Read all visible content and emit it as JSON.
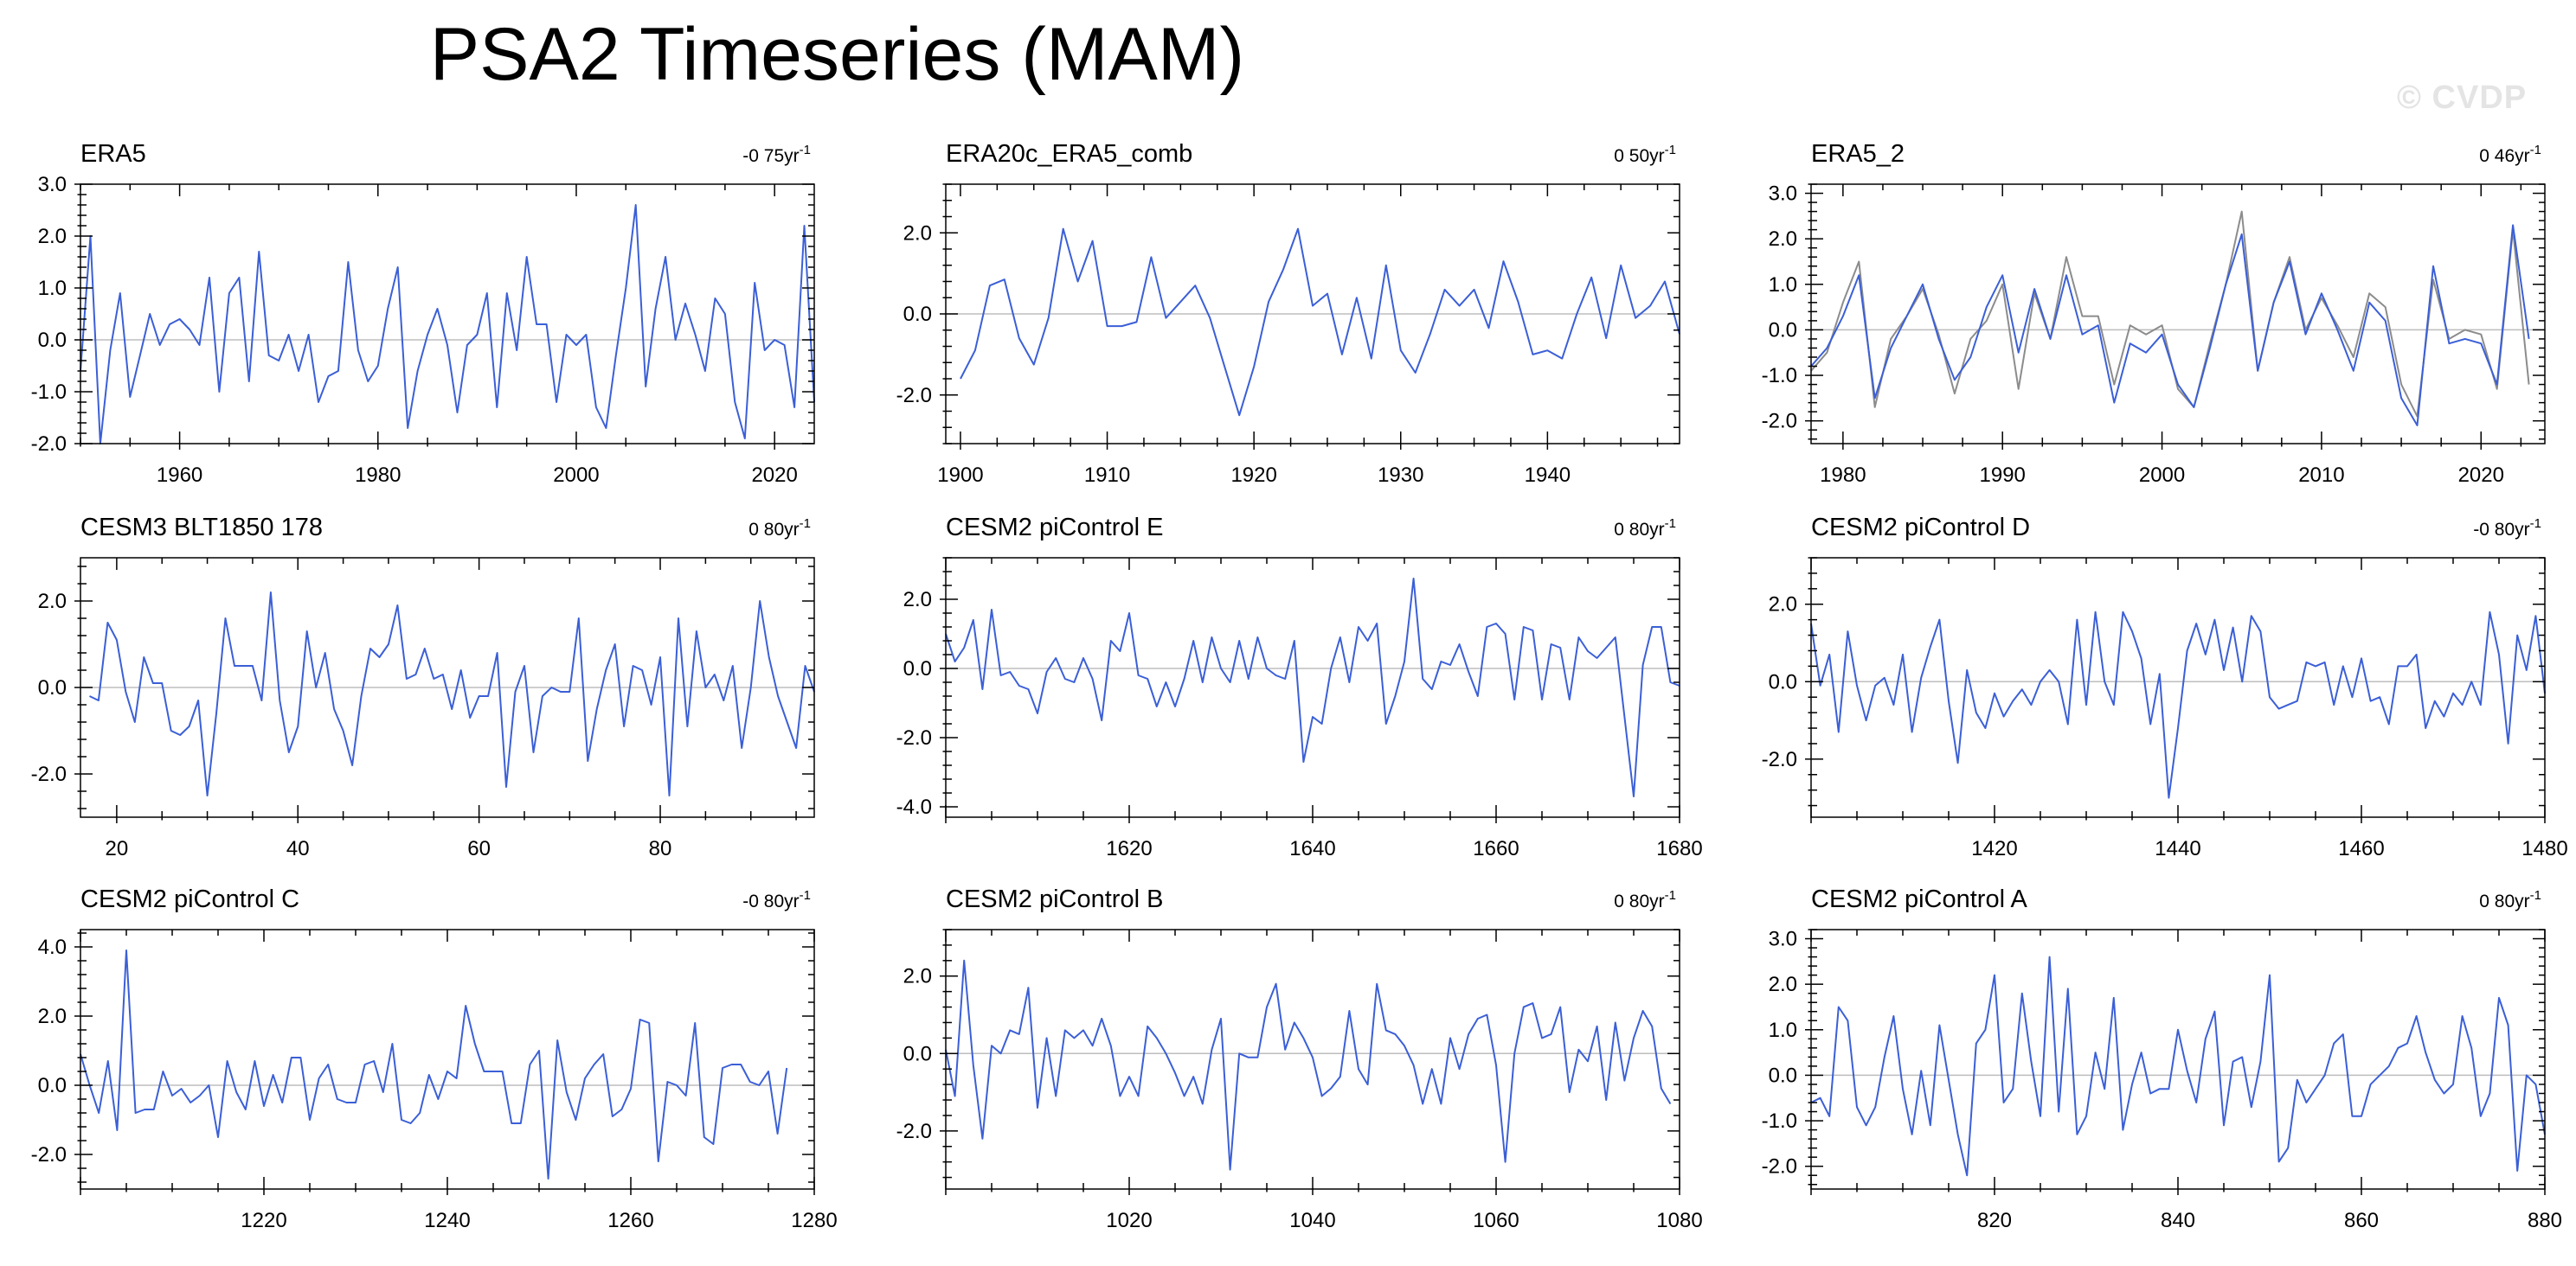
{
  "title": "PSA2 Timeseries (MAM)",
  "watermark": "© CVDP",
  "colors": {
    "series": "#3b5fd6",
    "reference": "#8c8c8c",
    "zero_line": "#bdbdbd",
    "axis": "#000000"
  },
  "chart_data": [
    {
      "type": "line",
      "title": "ERA5",
      "trend": "-0 75yr",
      "trend_exp": "-1",
      "xlim": [
        1950,
        2024
      ],
      "ylim": [
        -2.0,
        3.0
      ],
      "xticks": [
        1960,
        1980,
        2000,
        2020
      ],
      "xtick_labels": [
        "1960",
        "1980",
        "2000",
        "2020"
      ],
      "yticks": [
        -2.0,
        -1.0,
        0.0,
        1.0,
        2.0,
        3.0
      ],
      "ytick_labels": [
        "-2.0",
        "-1.0",
        "0.0",
        "1.0",
        "2.0",
        "3.0"
      ],
      "series": [
        {
          "name": "ERA5",
          "x_start": 1950,
          "values": [
            -0.6,
            2.0,
            -2.0,
            -0.2,
            0.9,
            -1.1,
            -0.3,
            0.5,
            -0.1,
            0.3,
            0.4,
            0.2,
            -0.1,
            1.2,
            -1.0,
            0.9,
            1.2,
            -0.8,
            1.7,
            -0.3,
            -0.4,
            0.1,
            -0.6,
            0.1,
            -1.2,
            -0.7,
            -0.6,
            1.5,
            -0.2,
            -0.8,
            -0.5,
            0.6,
            1.4,
            -1.7,
            -0.6,
            0.1,
            0.6,
            -0.1,
            -1.4,
            -0.1,
            0.1,
            0.9,
            -1.3,
            0.9,
            -0.2,
            1.6,
            0.3,
            0.3,
            -1.2,
            0.1,
            -0.1,
            0.1,
            -1.3,
            -1.7,
            -0.3,
            1.0,
            2.6,
            -0.9,
            0.6,
            1.6,
            0.0,
            0.7,
            0.1,
            -0.6,
            0.8,
            0.5,
            -1.2,
            -1.9,
            1.1,
            -0.2,
            0.0,
            -0.1,
            -1.3,
            2.2,
            -1.2
          ]
        }
      ]
    },
    {
      "type": "line",
      "title": "ERA20c_ERA5_comb",
      "trend": "0 50yr",
      "trend_exp": "-1",
      "xlim": [
        1899,
        1949
      ],
      "ylim": [
        -3.2,
        3.2
      ],
      "xticks": [
        1900,
        1910,
        1920,
        1930,
        1940
      ],
      "xtick_labels": [
        "1900",
        "1910",
        "1920",
        "1930",
        "1940"
      ],
      "yticks": [
        -2.0,
        0.0,
        2.0
      ],
      "ytick_labels": [
        "-2.0",
        "0.0",
        "2.0"
      ],
      "series": [
        {
          "name": "ERA20c_ERA5_comb",
          "x_start": 1900,
          "values": [
            -1.6,
            -0.9,
            0.7,
            0.85,
            -0.6,
            -1.25,
            -0.1,
            2.1,
            0.8,
            1.8,
            -0.3,
            -0.3,
            -0.2,
            1.4,
            -0.1,
            0.3,
            0.7,
            -0.1,
            -1.3,
            -2.5,
            -1.3,
            0.3,
            1.1,
            2.1,
            0.2,
            0.5,
            -1.0,
            0.4,
            -1.1,
            1.2,
            -0.9,
            -1.45,
            -0.5,
            0.6,
            0.2,
            0.6,
            -0.35,
            1.3,
            0.3,
            -1.0,
            -0.9,
            -1.1,
            0.0,
            0.9,
            -0.6,
            1.2,
            -0.1,
            0.2,
            0.8,
            -0.5
          ]
        }
      ]
    },
    {
      "type": "line",
      "title": "ERA5_2",
      "trend": "0 46yr",
      "trend_exp": "-1",
      "xlim": [
        1978,
        2024
      ],
      "ylim": [
        -2.5,
        3.2
      ],
      "xticks": [
        1980,
        1990,
        2000,
        2010,
        2020
      ],
      "xtick_labels": [
        "1980",
        "1990",
        "2000",
        "2010",
        "2020"
      ],
      "yticks": [
        -2.0,
        -1.0,
        0.0,
        1.0,
        2.0,
        3.0
      ],
      "ytick_labels": [
        "-2.0",
        "-1.0",
        "0.0",
        "1.0",
        "2.0",
        "3.0"
      ],
      "series": [
        {
          "name": "ERA5_2",
          "x_start": 1978,
          "values": [
            -0.8,
            -0.4,
            0.3,
            1.2,
            -1.5,
            -0.4,
            0.3,
            1.0,
            -0.2,
            -1.1,
            -0.6,
            0.5,
            1.2,
            -0.5,
            0.9,
            -0.2,
            1.2,
            -0.1,
            0.1,
            -1.6,
            -0.3,
            -0.5,
            -0.1,
            -1.2,
            -1.7,
            -0.4,
            1.0,
            2.1,
            -0.9,
            0.6,
            1.5,
            -0.1,
            0.8,
            0.0,
            -0.9,
            0.6,
            0.2,
            -1.5,
            -2.1,
            1.4,
            -0.3,
            -0.2,
            -0.3,
            -1.2,
            2.3,
            -0.2
          ]
        },
        {
          "name": "ERA5",
          "x_start": 1978,
          "values": [
            -0.9,
            -0.5,
            0.6,
            1.5,
            -1.7,
            -0.2,
            0.3,
            0.9,
            -0.1,
            -1.4,
            -0.2,
            0.2,
            1.0,
            -1.3,
            0.8,
            -0.2,
            1.6,
            0.3,
            0.3,
            -1.2,
            0.1,
            -0.1,
            0.1,
            -1.3,
            -1.7,
            -0.3,
            1.0,
            2.6,
            -0.9,
            0.6,
            1.6,
            0.0,
            0.7,
            0.1,
            -0.6,
            0.8,
            0.5,
            -1.2,
            -1.9,
            1.1,
            -0.2,
            0.0,
            -0.1,
            -1.3,
            2.2,
            -1.2
          ]
        }
      ]
    },
    {
      "type": "line",
      "title": "CESM3 BLT1850 178",
      "trend": "0 80yr",
      "trend_exp": "-1",
      "xlim": [
        16,
        97
      ],
      "ylim": [
        -3.0,
        3.0
      ],
      "xticks": [
        20,
        40,
        60,
        80
      ],
      "xtick_labels": [
        "20",
        "40",
        "60",
        "80"
      ],
      "yticks": [
        -2.0,
        0.0,
        2.0
      ],
      "ytick_labels": [
        "-2.0",
        "0.0",
        "2.0"
      ],
      "series": [
        {
          "name": "CESM3 BLT1850 178",
          "x_start": 17,
          "values": [
            -0.2,
            -0.3,
            1.5,
            1.1,
            -0.1,
            -0.8,
            0.7,
            0.1,
            0.1,
            -1.0,
            -1.1,
            -0.9,
            -0.3,
            -2.5,
            -0.6,
            1.6,
            0.5,
            0.5,
            0.5,
            -0.3,
            2.2,
            -0.3,
            -1.5,
            -0.9,
            1.3,
            0.0,
            0.8,
            -0.5,
            -1.0,
            -1.8,
            -0.2,
            0.9,
            0.7,
            1.0,
            1.9,
            0.2,
            0.3,
            0.9,
            0.2,
            0.3,
            -0.5,
            0.4,
            -0.7,
            -0.2,
            -0.2,
            0.8,
            -2.3,
            -0.1,
            0.5,
            -1.5,
            -0.2,
            0.0,
            -0.1,
            -0.1,
            1.6,
            -1.7,
            -0.5,
            0.4,
            1.0,
            -0.9,
            0.5,
            0.4,
            -0.4,
            0.7,
            -2.5,
            1.6,
            -0.9,
            1.3,
            0.0,
            0.3,
            -0.3,
            0.5,
            -1.4,
            0.0,
            2.0,
            0.7,
            -0.2,
            -0.8,
            -1.4,
            0.5,
            -0.1
          ]
        }
      ]
    },
    {
      "type": "line",
      "title": "CESM2 piControl E",
      "trend": "0 80yr",
      "trend_exp": "-1",
      "xlim": [
        1600,
        1680
      ],
      "ylim": [
        -4.3,
        3.2
      ],
      "xticks": [
        1620,
        1640,
        1660,
        1680
      ],
      "xtick_labels": [
        "1620",
        "1640",
        "1660",
        "1680"
      ],
      "yticks": [
        -4.0,
        -2.0,
        0.0,
        2.0
      ],
      "ytick_labels": [
        "-4.0",
        "-2.0",
        "0.0",
        "2.0"
      ],
      "series": [
        {
          "name": "CESM2 piControl E",
          "x_start": 1600,
          "values": [
            1.0,
            0.2,
            0.6,
            1.4,
            -0.6,
            1.7,
            -0.2,
            -0.1,
            -0.5,
            -0.6,
            -1.3,
            -0.1,
            0.3,
            -0.3,
            -0.4,
            0.3,
            -0.3,
            -1.5,
            0.8,
            0.5,
            1.6,
            -0.2,
            -0.3,
            -1.1,
            -0.4,
            -1.1,
            -0.3,
            0.8,
            -0.4,
            0.9,
            0.0,
            -0.4,
            0.8,
            -0.3,
            0.9,
            0.0,
            -0.2,
            -0.3,
            0.8,
            -2.7,
            -1.4,
            -1.6,
            0.0,
            0.9,
            -0.4,
            1.2,
            0.8,
            1.3,
            -1.6,
            -0.8,
            0.2,
            2.6,
            -0.3,
            -0.6,
            0.2,
            0.1,
            0.7,
            -0.1,
            -0.8,
            1.2,
            1.3,
            1.0,
            -0.9,
            1.2,
            1.1,
            -0.9,
            0.7,
            0.6,
            -0.9,
            0.9,
            0.5,
            0.3,
            0.6,
            0.9,
            -1.4,
            -3.7,
            0.1,
            1.2,
            1.2,
            -0.4,
            -0.5
          ]
        }
      ]
    },
    {
      "type": "line",
      "title": "CESM2 piControl D",
      "trend": "-0 80yr",
      "trend_exp": "-1",
      "xlim": [
        1400,
        1480
      ],
      "ylim": [
        -3.5,
        3.2
      ],
      "xticks": [
        1420,
        1440,
        1460,
        1480
      ],
      "xtick_labels": [
        "1420",
        "1440",
        "1460",
        "1480"
      ],
      "yticks": [
        -2.0,
        0.0,
        2.0
      ],
      "ytick_labels": [
        "-2.0",
        "0.0",
        "2.0"
      ],
      "series": [
        {
          "name": "CESM2 piControl D",
          "x_start": 1400,
          "values": [
            1.5,
            -0.1,
            0.7,
            -1.3,
            1.3,
            -0.1,
            -1.0,
            -0.1,
            0.1,
            -0.6,
            0.7,
            -1.3,
            0.1,
            0.9,
            1.6,
            -0.5,
            -2.1,
            0.3,
            -0.8,
            -1.2,
            -0.3,
            -0.9,
            -0.5,
            -0.2,
            -0.6,
            0.0,
            0.3,
            0.0,
            -1.1,
            1.6,
            -0.6,
            1.8,
            0.0,
            -0.6,
            1.8,
            1.3,
            0.6,
            -1.1,
            0.2,
            -3.0,
            -1.2,
            0.8,
            1.5,
            0.7,
            1.6,
            0.3,
            1.4,
            0.0,
            1.7,
            1.3,
            -0.4,
            -0.7,
            -0.6,
            -0.5,
            0.5,
            0.4,
            0.5,
            -0.6,
            0.4,
            -0.4,
            0.6,
            -0.5,
            -0.4,
            -1.1,
            0.4,
            0.4,
            0.7,
            -1.2,
            -0.5,
            -0.9,
            -0.3,
            -0.6,
            0.0,
            -0.6,
            1.8,
            0.7,
            -1.6,
            1.2,
            0.3,
            1.7,
            -0.3
          ]
        }
      ]
    },
    {
      "type": "line",
      "title": "CESM2 piControl C",
      "trend": "-0 80yr",
      "trend_exp": "-1",
      "xlim": [
        1200,
        1280
      ],
      "ylim": [
        -3.0,
        4.5
      ],
      "xticks": [
        1220,
        1240,
        1260,
        1280
      ],
      "xtick_labels": [
        "1220",
        "1240",
        "1260",
        "1280"
      ],
      "yticks": [
        -2.0,
        0.0,
        2.0,
        4.0
      ],
      "ytick_labels": [
        "-2.0",
        "0.0",
        "2.0",
        "4.0"
      ],
      "series": [
        {
          "name": "CESM2 piControl C",
          "x_start": 1200,
          "values": [
            0.9,
            0.0,
            -0.8,
            0.7,
            -1.3,
            3.9,
            -0.8,
            -0.7,
            -0.7,
            0.4,
            -0.3,
            -0.1,
            -0.5,
            -0.3,
            0.0,
            -1.5,
            0.7,
            -0.2,
            -0.7,
            0.7,
            -0.6,
            0.3,
            -0.5,
            0.8,
            0.8,
            -1.0,
            0.2,
            0.6,
            -0.4,
            -0.5,
            -0.5,
            0.6,
            0.7,
            -0.2,
            1.2,
            -1.0,
            -1.1,
            -0.8,
            0.3,
            -0.4,
            0.4,
            0.2,
            2.3,
            1.2,
            0.4,
            0.4,
            0.4,
            -1.1,
            -1.1,
            0.6,
            1.0,
            -2.7,
            1.3,
            -0.2,
            -1.0,
            0.2,
            0.6,
            0.9,
            -0.9,
            -0.7,
            -0.1,
            1.9,
            1.8,
            -2.2,
            0.1,
            0.0,
            -0.3,
            1.8,
            -1.5,
            -1.7,
            0.5,
            0.6,
            0.6,
            0.1,
            0.0,
            0.4,
            -1.4,
            0.5
          ]
        }
      ]
    },
    {
      "type": "line",
      "title": "CESM2 piControl B",
      "trend": "0 80yr",
      "trend_exp": "-1",
      "xlim": [
        1000,
        1080
      ],
      "ylim": [
        -3.5,
        3.2
      ],
      "xticks": [
        1020,
        1040,
        1060,
        1080
      ],
      "xtick_labels": [
        "1020",
        "1040",
        "1060",
        "1080"
      ],
      "yticks": [
        -2.0,
        0.0,
        2.0
      ],
      "ytick_labels": [
        "-2.0",
        "0.0",
        "2.0"
      ],
      "series": [
        {
          "name": "CESM2 piControl B",
          "x_start": 1000,
          "values": [
            0.1,
            -1.1,
            2.4,
            -0.3,
            -2.2,
            0.2,
            0.0,
            0.6,
            0.5,
            1.7,
            -1.4,
            0.4,
            -1.1,
            0.6,
            0.4,
            0.6,
            0.2,
            0.9,
            0.2,
            -1.1,
            -0.6,
            -1.1,
            0.7,
            0.4,
            0.0,
            -0.5,
            -1.1,
            -0.6,
            -1.3,
            0.1,
            0.9,
            -3.0,
            0.0,
            -0.1,
            -0.1,
            1.2,
            1.8,
            0.1,
            0.8,
            0.4,
            -0.1,
            -1.1,
            -0.9,
            -0.6,
            1.1,
            -0.4,
            -0.8,
            1.8,
            0.6,
            0.5,
            0.2,
            -0.3,
            -1.3,
            -0.4,
            -1.3,
            0.4,
            -0.4,
            0.5,
            0.9,
            1.0,
            -0.3,
            -2.8,
            0.0,
            1.2,
            1.3,
            0.4,
            0.5,
            1.2,
            -1.0,
            0.1,
            -0.2,
            0.7,
            -1.2,
            0.8,
            -0.7,
            0.4,
            1.1,
            0.7,
            -0.9,
            -1.3
          ]
        }
      ]
    },
    {
      "type": "line",
      "title": "CESM2 piControl A",
      "trend": "0 80yr",
      "trend_exp": "-1",
      "xlim": [
        800,
        880
      ],
      "ylim": [
        -2.5,
        3.2
      ],
      "xticks": [
        820,
        840,
        860,
        880
      ],
      "xtick_labels": [
        "820",
        "840",
        "860",
        "880"
      ],
      "yticks": [
        -2.0,
        -1.0,
        0.0,
        1.0,
        2.0,
        3.0
      ],
      "ytick_labels": [
        "-2.0",
        "-1.0",
        "0.0",
        "1.0",
        "2.0",
        "3.0"
      ],
      "series": [
        {
          "name": "CESM2 piControl A",
          "x_start": 800,
          "values": [
            -0.6,
            -0.5,
            -0.9,
            1.5,
            1.2,
            -0.7,
            -1.1,
            -0.7,
            0.4,
            1.3,
            -0.3,
            -1.3,
            0.1,
            -1.1,
            1.1,
            -0.1,
            -1.3,
            -2.2,
            0.7,
            1.0,
            2.2,
            -0.6,
            -0.3,
            1.8,
            0.3,
            -0.9,
            2.6,
            -0.8,
            1.9,
            -1.3,
            -0.9,
            0.5,
            -0.3,
            1.7,
            -1.2,
            -0.2,
            0.5,
            -0.4,
            -0.3,
            -0.3,
            1.0,
            0.1,
            -0.6,
            0.8,
            1.4,
            -1.1,
            0.3,
            0.4,
            -0.7,
            0.3,
            2.2,
            -1.9,
            -1.6,
            -0.1,
            -0.6,
            -0.3,
            0.0,
            0.7,
            0.9,
            -0.9,
            -0.9,
            -0.2,
            0.0,
            0.2,
            0.6,
            0.7,
            1.3,
            0.5,
            -0.1,
            -0.4,
            -0.2,
            1.3,
            0.6,
            -0.9,
            -0.4,
            1.7,
            1.1,
            -2.1,
            0.0,
            -0.2,
            -1.3
          ]
        }
      ]
    }
  ]
}
